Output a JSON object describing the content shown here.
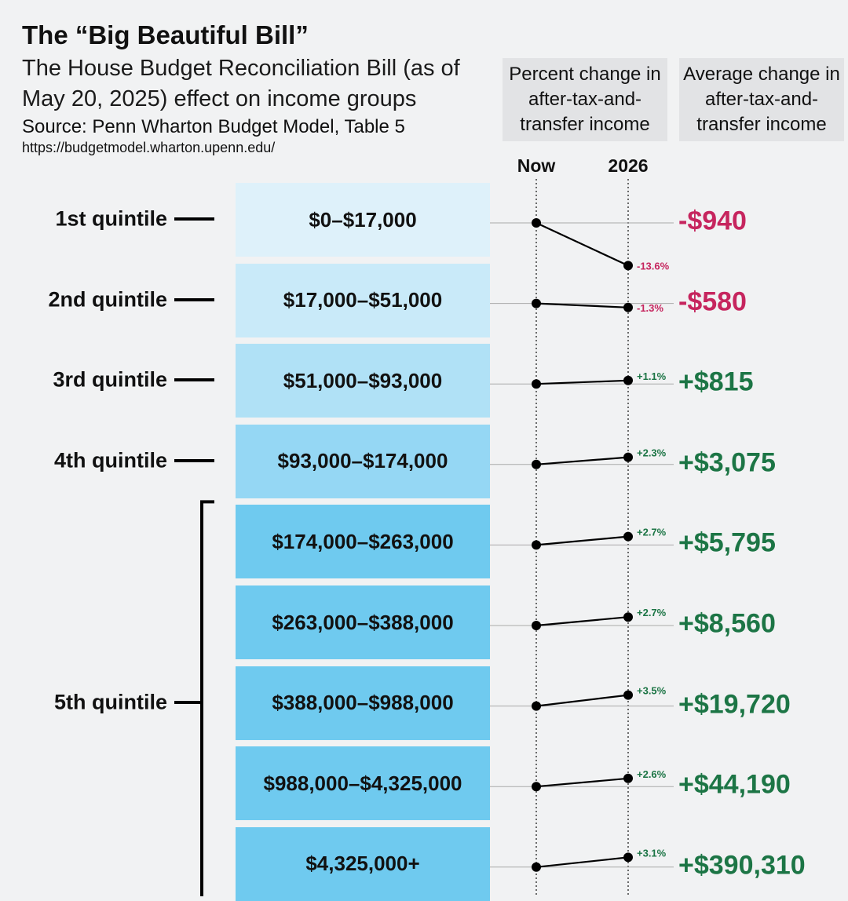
{
  "title": "The “Big Beautiful Bill”",
  "subtitle_line1": "The House Budget Reconciliation Bill (as of",
  "subtitle_line2": "May 20, 2025) effect on income groups",
  "source": "Source: Penn Wharton Budget Model, Table 5",
  "url": "https://budgetmodel.wharton.upenn.edu/",
  "headers": {
    "percent_change": "Percent change in after-tax-and-transfer income",
    "average_change": "Average change in after-tax-and-transfer income"
  },
  "columns": {
    "now": "Now",
    "later": "2026"
  },
  "quintiles": [
    {
      "label": "1st quintile",
      "rows": 1
    },
    {
      "label": "2nd quintile",
      "rows": 1
    },
    {
      "label": "3rd quintile",
      "rows": 1
    },
    {
      "label": "4th quintile",
      "rows": 1
    },
    {
      "label": "5th quintile",
      "rows": 5
    }
  ],
  "colors": {
    "negative": "#c6255e",
    "positive": "#1c7545",
    "bands": [
      "#def1fa",
      "#c9eaf9",
      "#b0e1f6",
      "#95d7f4",
      "#6fcaef",
      "#6fcaef",
      "#6fcaef",
      "#6fcaef",
      "#6fcaef"
    ]
  },
  "chart_data": {
    "type": "slope",
    "title": "The “Big Beautiful Bill”",
    "categories": [
      "$0–$17,000",
      "$17,000–$51,000",
      "$51,000–$93,000",
      "$93,000–$174,000",
      "$174,000–$263,000",
      "$263,000–$388,000",
      "$388,000–$988,000",
      "$988,000–$4,325,000",
      "$4,325,000+"
    ],
    "x": [
      "Now",
      "2026"
    ],
    "series": [
      {
        "name": "Percent change in after-tax-and-transfer income",
        "values": [
          -13.6,
          -1.3,
          1.1,
          2.3,
          2.7,
          2.7,
          3.5,
          2.6,
          3.1
        ]
      },
      {
        "name": "Average change in after-tax-and-transfer income",
        "values": [
          -940,
          -580,
          815,
          3075,
          5795,
          8560,
          19720,
          44190,
          390310
        ]
      }
    ],
    "pct_labels": [
      "-13.6%",
      "-1.3%",
      "+1.1%",
      "+2.3%",
      "+2.7%",
      "+2.7%",
      "+3.5%",
      "+2.6%",
      "+3.1%"
    ],
    "amount_labels": [
      "-$940",
      "-$580",
      "+$815",
      "+$3,075",
      "+$5,795",
      "+$8,560",
      "+$19,720",
      "+$44,190",
      "+$390,310"
    ]
  }
}
